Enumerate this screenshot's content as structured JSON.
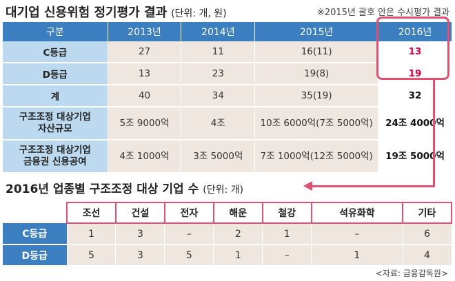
{
  "title": "대기업 신용위험 정기평가 결과",
  "unit": "(단위: 개, 원)",
  "note": "※2015년 괄호 안은 수시평가 결과",
  "chart_data": [
    {
      "type": "table",
      "columns": [
        "구분",
        "2013년",
        "2014년",
        "2015년",
        "2016년"
      ],
      "rows": [
        {
          "label": "C등급",
          "values": [
            "27",
            "11",
            "16(11)",
            "13"
          ]
        },
        {
          "label": "D등급",
          "values": [
            "13",
            "23",
            "19(8)",
            "19"
          ]
        },
        {
          "label": "계",
          "values": [
            "40",
            "34",
            "35(19)",
            "32"
          ]
        },
        {
          "label": "구조조정 대상기업\n자산규모",
          "values": [
            "5조 9000억",
            "4조",
            "10조 6000억(7조 5000억)",
            "24조 4000억"
          ]
        },
        {
          "label": "구조조정 대상기업\n금융권 신용공여",
          "values": [
            "4조 1000억",
            "3조 5000억",
            "7조 1000억(12조 5000억)",
            "19조 5000억"
          ]
        }
      ]
    },
    {
      "type": "table",
      "title": "2016년 업종별 구조조정 대상 기업 수",
      "unit": "(단위: 개)",
      "columns": [
        "조선",
        "건설",
        "전자",
        "해운",
        "철강",
        "석유화학",
        "기타"
      ],
      "rows": [
        {
          "label": "C등급",
          "values": [
            "1",
            "3",
            "–",
            "2",
            "1",
            "–",
            "6"
          ]
        },
        {
          "label": "D등급",
          "values": [
            "5",
            "3",
            "5",
            "1",
            "–",
            "1",
            "4"
          ]
        }
      ]
    }
  ],
  "source": "<자료: 금융감독원>",
  "colors": {
    "header_blue": "#3b7fc0",
    "row_head": "#bcd9ef",
    "cell_beige": "#efe6df",
    "accent_red": "#e05073",
    "value_red": "#e0004e"
  }
}
